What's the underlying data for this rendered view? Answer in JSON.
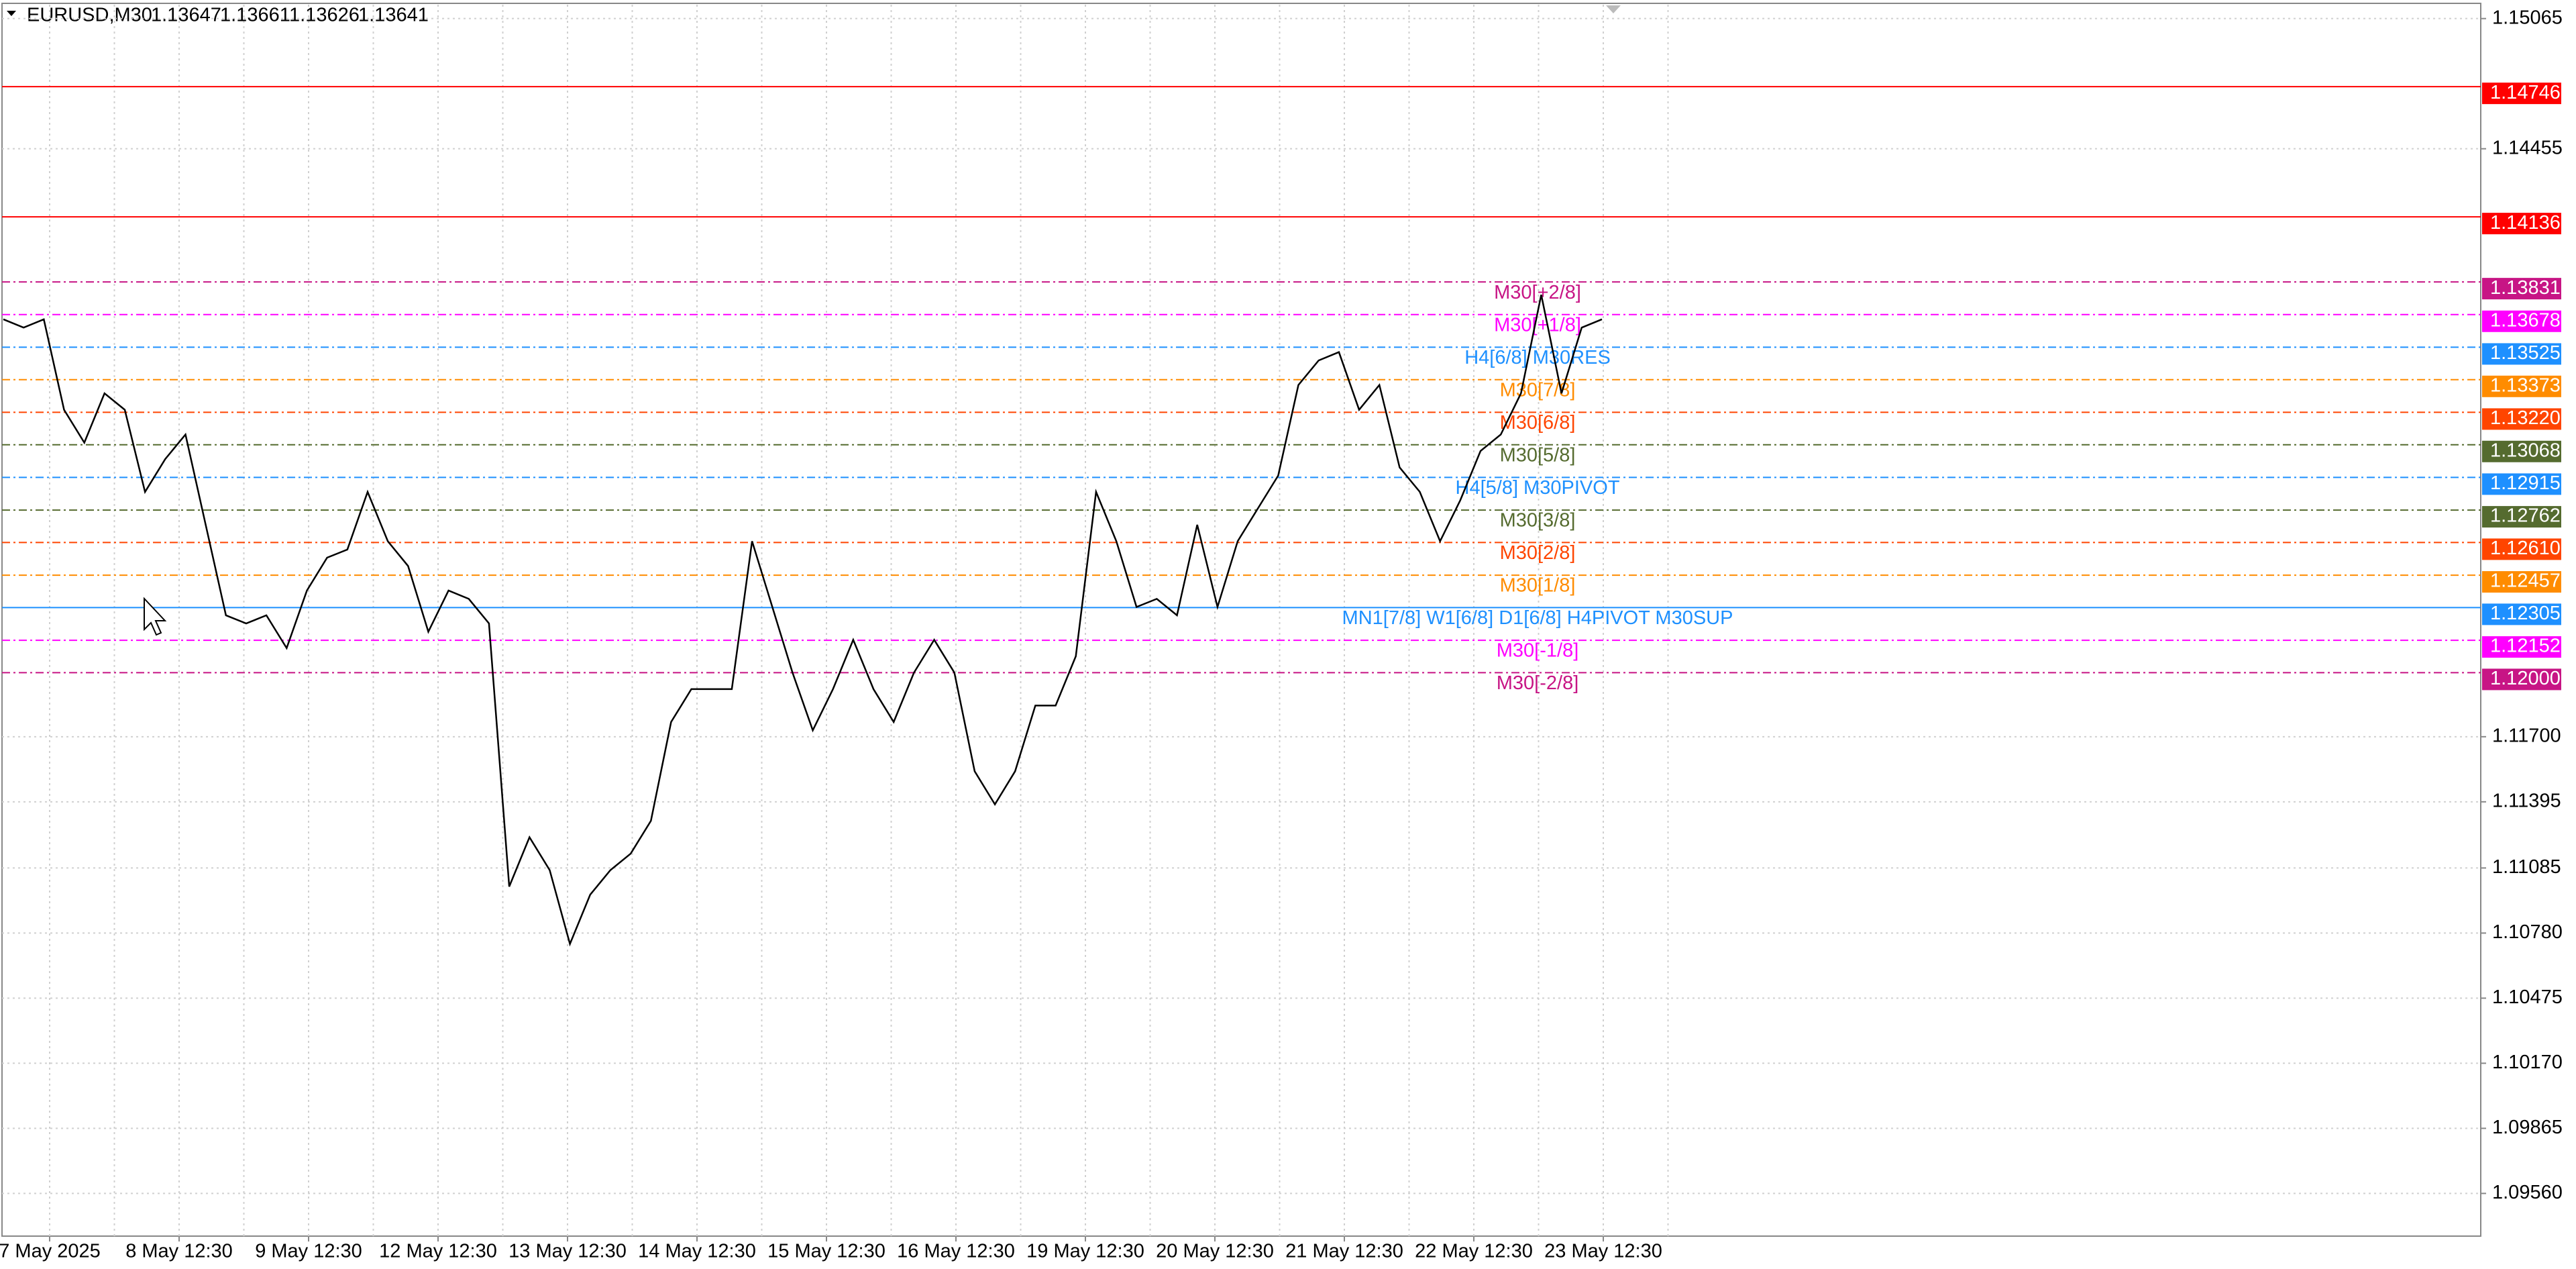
{
  "chart_data": {
    "type": "line",
    "symbol": "EURUSD,M30",
    "header_prices": [
      1.13647,
      1.13661,
      1.13626,
      1.13641
    ],
    "ylim": [
      1.0936,
      1.1513
    ],
    "yticks": [
      {
        "value": 1.15065,
        "label": "1.15065"
      },
      {
        "value": 1.14455,
        "label": "1.14455"
      },
      {
        "value": 1.117,
        "label": "1.11700"
      },
      {
        "value": 1.11395,
        "label": "1.11395"
      },
      {
        "value": 1.11085,
        "label": "1.11085"
      },
      {
        "value": 1.1078,
        "label": "1.10780"
      },
      {
        "value": 1.10475,
        "label": "1.10475"
      },
      {
        "value": 1.1017,
        "label": "1.10170"
      },
      {
        "value": 1.09865,
        "label": "1.09865"
      },
      {
        "value": 1.0956,
        "label": "1.09560"
      }
    ],
    "xticks": [
      "7 May 2025",
      "8 May 12:30",
      "9 May 12:30",
      "12 May 12:30",
      "13 May 12:30",
      "14 May 12:30",
      "15 May 12:30",
      "16 May 12:30",
      "19 May 12:30",
      "20 May 12:30",
      "21 May 12:30",
      "22 May 12:30",
      "23 May 12:30"
    ],
    "grid": true,
    "color": "#000000",
    "values": [
      1.13656,
      1.13617,
      1.13656,
      1.13232,
      1.13078,
      1.13309,
      1.13232,
      1.12847,
      1.13001,
      1.13116,
      1.12693,
      1.12269,
      1.12231,
      1.12269,
      1.12115,
      1.12385,
      1.12539,
      1.12577,
      1.12847,
      1.12616,
      1.125,
      1.12192,
      1.12385,
      1.12346,
      1.12231,
      1.10998,
      1.11229,
      1.11075,
      1.10729,
      1.1096,
      1.11075,
      1.11152,
      1.11306,
      1.11769,
      1.11923,
      1.11923,
      1.11923,
      1.12616,
      1.12308,
      1.12,
      1.1173,
      1.11923,
      1.12154,
      1.11923,
      1.11769,
      1.12,
      1.12154,
      1.12,
      1.11538,
      1.11383,
      1.11538,
      1.11846,
      1.11846,
      1.12077,
      1.12847,
      1.12616,
      1.12308,
      1.12346,
      1.12269,
      1.12693,
      1.12308,
      1.12616,
      1.1277,
      1.12924,
      1.13348,
      1.13463,
      1.13502,
      1.13232,
      1.13348,
      1.12962,
      1.12847,
      1.12616,
      1.12808,
      1.13039,
      1.13116,
      1.13309,
      1.13771,
      1.13309,
      1.13617,
      1.13656
    ],
    "levels": {
      "values": [
        1.14746,
        1.14136,
        1.13831,
        1.13678,
        1.13525,
        1.13373,
        1.1322,
        1.13068,
        1.12915,
        1.12762,
        1.1261,
        1.12457,
        1.12305,
        1.12152,
        1.12
      ],
      "value_labels": [
        "1.14746",
        "1.14136",
        "1.13831",
        "1.13678",
        "1.13525",
        "1.13373",
        "1.13220",
        "1.13068",
        "1.12915",
        "1.12762",
        "1.12610",
        "1.12457",
        "1.12305",
        "1.12152",
        "1.12000"
      ],
      "names": [
        null,
        null,
        "M30[+2/8]",
        "M30[+1/8]",
        "H4[6/8] M30RES",
        "M30[7/8]",
        "M30[6/8]",
        "M30[5/8]",
        "H4[5/8] M30PIVOT",
        "M30[3/8]",
        "M30[2/8]",
        "M30[1/8]",
        "MN1[7/8] W1[6/8] D1[6/8] H4PIVOT M30SUP",
        "M30[-1/8]",
        "M30[-2/8]"
      ],
      "colors": [
        "#ff0000",
        "#ff0000",
        "#c71585",
        "#ff00ff",
        "#1e90ff",
        "#ff8c00",
        "#ff4500",
        "#556b2f",
        "#1e90ff",
        "#556b2f",
        "#ff4500",
        "#ff8c00",
        "#1e90ff",
        "#ff00ff",
        "#c71585"
      ],
      "styles": [
        "solid",
        "solid",
        "dashdot",
        "dashdot",
        "dashdot",
        "dashdot",
        "dashdot",
        "dashdot",
        "dashdot",
        "dashdot",
        "dashdot",
        "dashdot",
        "solid",
        "dashdot",
        "dashdot"
      ]
    }
  }
}
